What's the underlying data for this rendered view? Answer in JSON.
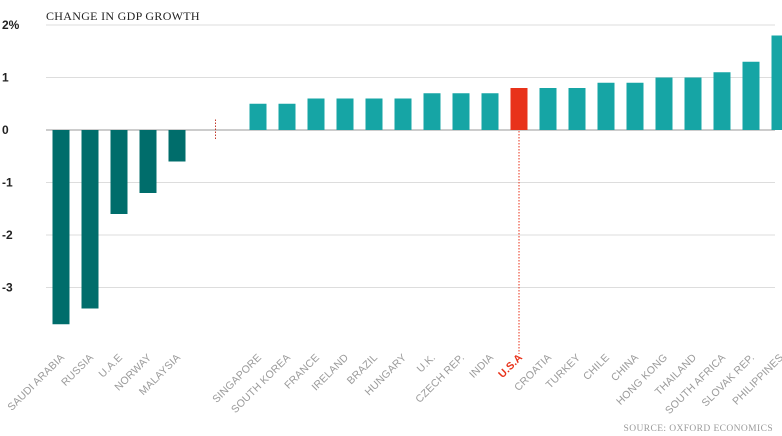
{
  "chart_data": {
    "type": "bar",
    "title": "CHANGE IN GDP GROWTH",
    "source": "SOURCE: OXFORD ECONOMICS",
    "xlabel": "",
    "ylabel": "",
    "ylim": [
      -4,
      2
    ],
    "yticks": [
      {
        "value": 2,
        "label": "2%"
      },
      {
        "value": 1,
        "label": "1"
      },
      {
        "value": 0,
        "label": "0"
      },
      {
        "value": -1,
        "label": "-1"
      },
      {
        "value": -2,
        "label": "-2"
      },
      {
        "value": -3,
        "label": "-3"
      }
    ],
    "grid": true,
    "highlight": "U.S.A",
    "colors": {
      "negative": "#006d6b",
      "positive": "#16a5a5",
      "highlight": "#e8321a",
      "grid": "#dddddd",
      "axis": "#999999"
    },
    "categories": [
      "SAUDI ARABIA",
      "RUSSIA",
      "U.A.E",
      "NORWAY",
      "MALAYSIA",
      "SINGAPORE",
      "SOUTH KOREA",
      "FRANCE",
      "IRELAND",
      "BRAZIL",
      "HUNGARY",
      "U.K.",
      "CZECH REP.",
      "INDIA",
      "U.S.A",
      "CROATIA",
      "TURKEY",
      "CHILE",
      "CHINA",
      "HONG KONG",
      "THAILAND",
      "SOUTH AFRICA",
      "SLOVAK REP.",
      "PHILIPPINES"
    ],
    "values": [
      -3.7,
      -3.4,
      -1.6,
      -1.2,
      -0.6,
      0.5,
      0.5,
      0.6,
      0.6,
      0.6,
      0.6,
      0.7,
      0.7,
      0.7,
      0.8,
      0.8,
      0.8,
      0.9,
      0.9,
      1.0,
      1.0,
      1.1,
      1.3,
      1.8
    ]
  }
}
